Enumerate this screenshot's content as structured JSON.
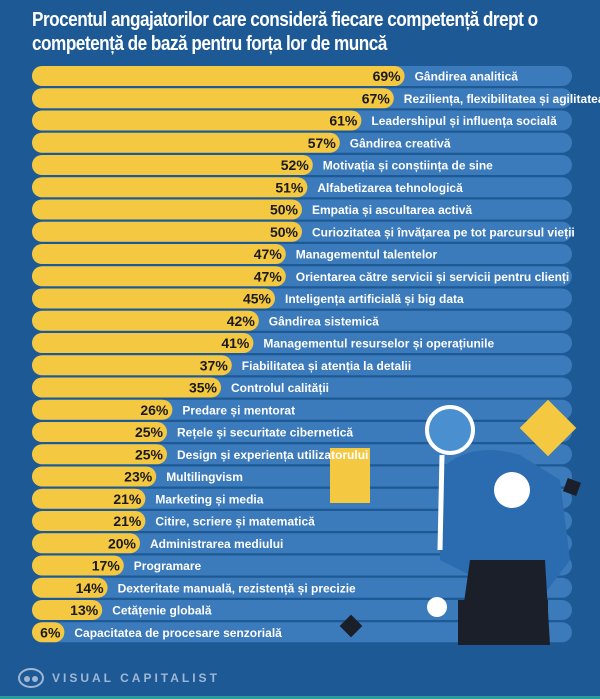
{
  "chart_data": {
    "type": "bar",
    "orientation": "horizontal",
    "title": "Procentul angajatorilor care consideră fiecare competență drept o competență de bază pentru forța lor de muncă",
    "categories": [
      "Gândirea analitică",
      "Reziliența, flexibilitatea și agilitatea",
      "Leadershipul și influența socială",
      "Gândirea creativă",
      "Motivația și conștiința de sine",
      "Alfabetizarea tehnologică",
      "Empatia și ascultarea activă",
      "Curiozitatea și învățarea pe tot parcursul vieții",
      "Managementul talentelor",
      "Orientarea către servicii și servicii pentru clienți",
      "Inteligența artificială și big data",
      "Gândirea sistemică",
      "Managementul resurselor și operațiunile",
      "Fiabilitatea și atenția la detalii",
      "Controlul calității",
      "Predare și mentorat",
      "Rețele și securitate cibernetică",
      "Design și experiența utilizatorului",
      "Multilingvism",
      "Marketing și media",
      "Citire, scriere și matematică",
      "Administrarea mediului",
      "Programare",
      "Dexteritate manuală, rezistență și precizie",
      "Cetățenie globală",
      "Capacitatea de procesare senzorială"
    ],
    "values": [
      69,
      67,
      61,
      57,
      52,
      51,
      50,
      50,
      47,
      47,
      45,
      42,
      41,
      37,
      35,
      26,
      25,
      25,
      23,
      21,
      21,
      20,
      17,
      14,
      13,
      6
    ],
    "unit": "%",
    "xlim": [
      0,
      100
    ],
    "grid": false,
    "colors": {
      "bar": "#f5c842",
      "track": "#3b7abb",
      "background": "#1d5a95"
    }
  },
  "footer": {
    "brand": "VISUAL CAPITALIST"
  }
}
